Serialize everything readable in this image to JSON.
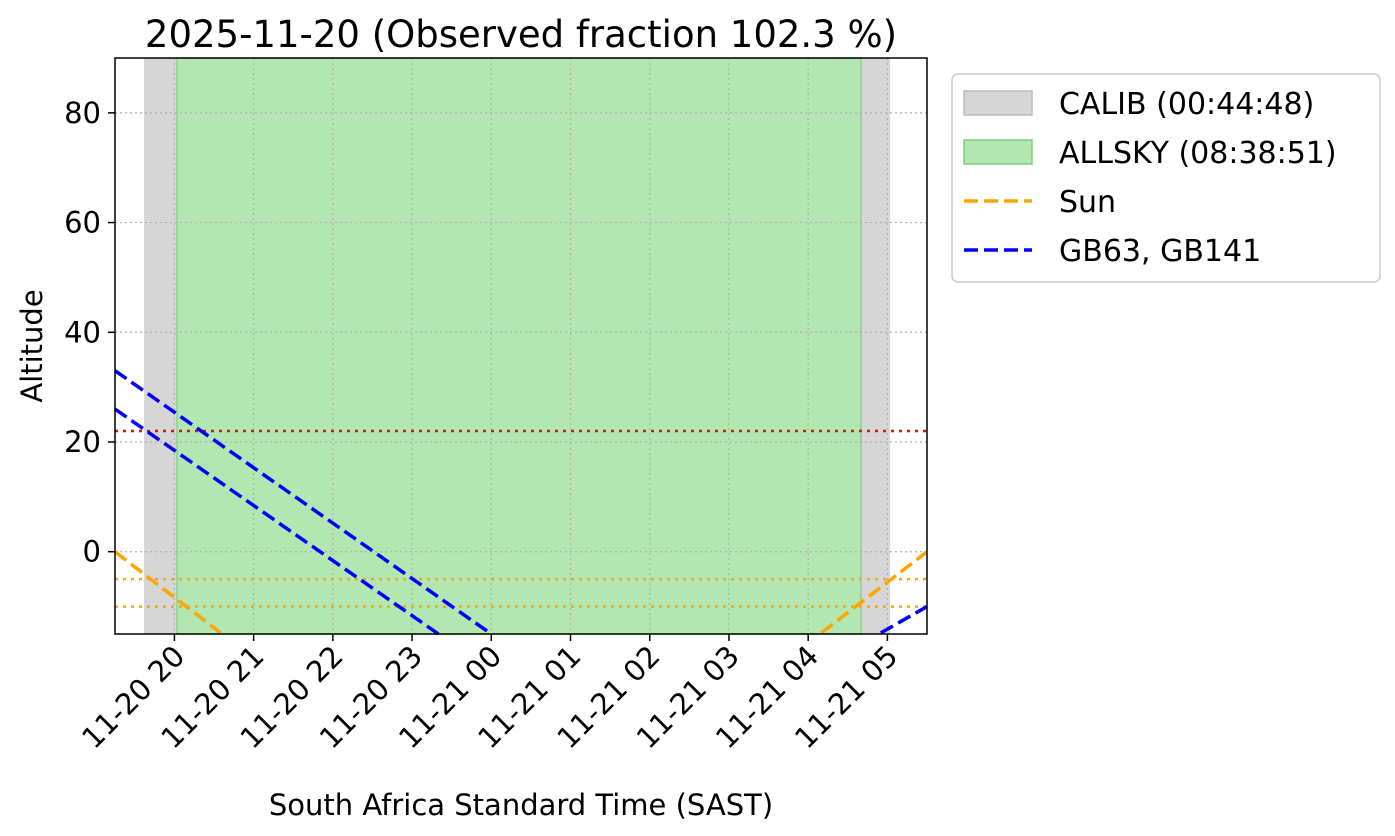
{
  "chart_data": {
    "type": "line",
    "title": "2025-11-20 (Observed fraction 102.3 %)",
    "xlabel": "South Africa Standard Time (SAST)",
    "ylabel": "Altitude",
    "xlim": [
      "2025-11-20 19:15",
      "2025-11-21 05:30"
    ],
    "ylim": [
      -15,
      90
    ],
    "x_ticks": [
      "11-20 20",
      "11-20 21",
      "11-20 22",
      "11-20 23",
      "11-21 00",
      "11-21 01",
      "11-21 02",
      "11-21 03",
      "11-21 04",
      "11-21 05"
    ],
    "y_ticks": [
      0,
      20,
      40,
      60,
      80
    ],
    "grid": true,
    "legend_position": "outside-right",
    "spans": [
      {
        "name": "CALIB (00:44:48)",
        "color": "#d6d6d6",
        "start": "2025-11-20 19:37",
        "end": "2025-11-21 05:02"
      },
      {
        "name": "ALLSKY (08:38:51)",
        "color": "#b2e7b2",
        "start": "2025-11-20 20:02",
        "end": "2025-11-21 04:40"
      }
    ],
    "hlines": [
      {
        "y": 22,
        "color": "#ff0000"
      },
      {
        "y": -5,
        "color": "#ffa500"
      },
      {
        "y": -10,
        "color": "#ffa500"
      }
    ],
    "series": [
      {
        "name": "Sun",
        "color": "#ffa500",
        "segments": [
          [
            {
              "x": "2025-11-20 19:15",
              "y": 0
            },
            {
              "x": "2025-11-20 20:35",
              "y": -14.8
            }
          ],
          [
            {
              "x": "2025-11-21 04:10",
              "y": -14.8
            },
            {
              "x": "2025-11-21 05:30",
              "y": 0
            }
          ]
        ]
      },
      {
        "name": "GB63, GB141",
        "color": "#0000ff",
        "segments": [
          [
            {
              "x": "2025-11-20 19:15",
              "y": 33
            },
            {
              "x": "2025-11-21 00:00",
              "y": -15
            }
          ],
          [
            {
              "x": "2025-11-21 04:55",
              "y": -14.8
            },
            {
              "x": "2025-11-21 05:30",
              "y": -10
            }
          ]
        ]
      },
      {
        "name": "",
        "color": "#0000ff",
        "segments": [
          [
            {
              "x": "2025-11-20 19:15",
              "y": 26
            },
            {
              "x": "2025-11-20 23:20",
              "y": -15
            }
          ]
        ]
      }
    ]
  }
}
